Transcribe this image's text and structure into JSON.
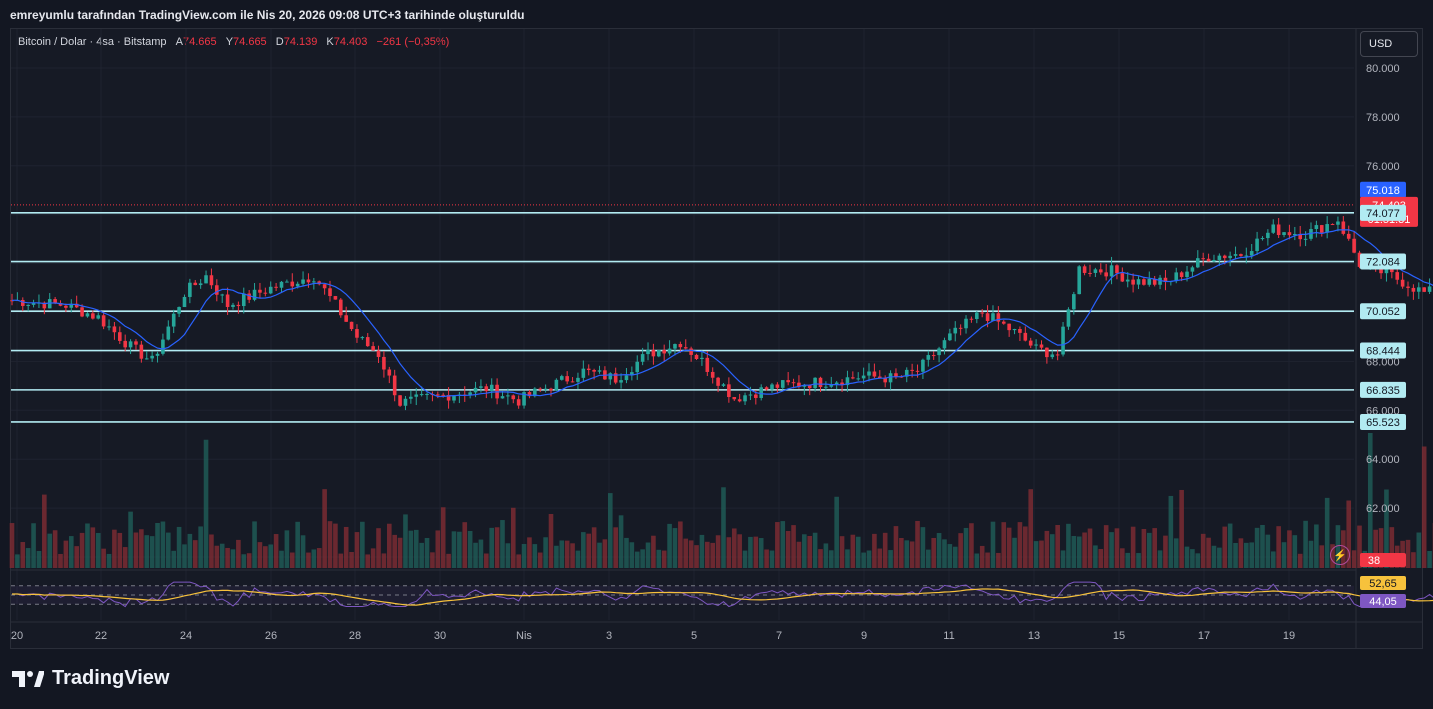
{
  "caption": "emreyumlu tarafından TradingView.com ile Nis 20, 2026 09:08 UTC+3 tarihinde oluşturuldu",
  "symbol_line": "Bitcoin / Dolar · 4sa · Bitstamp",
  "ohlc": {
    "open_label": "A",
    "open": "74.665",
    "high_label": "Y",
    "high": "74.665",
    "low_label": "D",
    "low": "74.139",
    "close_label": "K",
    "close": "74.403",
    "change": "−261 (−0,35%)"
  },
  "currency": "USD",
  "brand": "TradingView",
  "colors": {
    "up": "#26a69a",
    "down": "#f23645",
    "up_vol": "#1f5a56",
    "down_vol": "#7a2c33",
    "ma": "#2962ff",
    "level": "#b2ebf2",
    "rsi": "#7e57c2",
    "rsi_ma": "#f7c23c"
  },
  "chart_data": {
    "type": "candlestick",
    "y_axis_ticks": [
      "80.000",
      "78.000",
      "76.000",
      "74.000",
      "72.000",
      "70.000",
      "68.000",
      "66.000",
      "64.000",
      "62.000",
      "60.000"
    ],
    "ylim": [
      59000,
      81000
    ],
    "x_axis_ticks": [
      "20",
      "22",
      "24",
      "26",
      "28",
      "30",
      "Nis",
      "3",
      "5",
      "7",
      "9",
      "11",
      "13",
      "15",
      "17",
      "19"
    ],
    "horizontal_levels": [
      "74.077",
      "72.084",
      "70.052",
      "68.444",
      "66.835",
      "65.523"
    ],
    "price_tags": {
      "ma_value": "75.018",
      "last_price": "74.403",
      "countdown": "01:51:31",
      "volume_value": "38",
      "rsi_ma_value": "52,65",
      "rsi_value": "44,05"
    },
    "close_series_start_price": 70500,
    "close_series_anchors": [
      [
        0,
        70500
      ],
      [
        10,
        70300
      ],
      [
        16,
        69800
      ],
      [
        22,
        68600
      ],
      [
        26,
        68000
      ],
      [
        32,
        70800
      ],
      [
        36,
        71500
      ],
      [
        40,
        70300
      ],
      [
        48,
        71000
      ],
      [
        56,
        71500
      ],
      [
        60,
        70300
      ],
      [
        64,
        69000
      ],
      [
        68,
        68300
      ],
      [
        72,
        66300
      ],
      [
        80,
        66600
      ],
      [
        88,
        66900
      ],
      [
        94,
        66400
      ],
      [
        100,
        67000
      ],
      [
        106,
        67600
      ],
      [
        112,
        67300
      ],
      [
        118,
        68300
      ],
      [
        124,
        68800
      ],
      [
        128,
        68000
      ],
      [
        134,
        66500
      ],
      [
        142,
        67000
      ],
      [
        152,
        67200
      ],
      [
        158,
        67400
      ],
      [
        164,
        67300
      ],
      [
        168,
        67600
      ],
      [
        174,
        69000
      ],
      [
        180,
        70000
      ],
      [
        186,
        69200
      ],
      [
        190,
        68500
      ],
      [
        194,
        68300
      ],
      [
        198,
        71800
      ],
      [
        204,
        71700
      ],
      [
        208,
        71300
      ],
      [
        214,
        71200
      ],
      [
        222,
        72300
      ],
      [
        228,
        72400
      ],
      [
        234,
        73400
      ],
      [
        240,
        73200
      ],
      [
        246,
        73800
      ],
      [
        250,
        72000
      ],
      [
        256,
        71500
      ],
      [
        262,
        70800
      ],
      [
        268,
        71000
      ],
      [
        272,
        72500
      ],
      [
        276,
        74600
      ],
      [
        282,
        75400
      ],
      [
        288,
        74400
      ],
      [
        296,
        74800
      ],
      [
        302,
        75200
      ],
      [
        308,
        75000
      ],
      [
        312,
        75600
      ],
      [
        316,
        77500
      ],
      [
        320,
        77200
      ],
      [
        326,
        76200
      ],
      [
        332,
        75800
      ],
      [
        336,
        75500
      ],
      [
        340,
        74400
      ]
    ],
    "volume_spikes": [
      [
        36,
        0.95
      ],
      [
        252,
        1.0
      ],
      [
        262,
        0.65
      ],
      [
        316,
        0.75
      ],
      [
        80,
        0.45
      ],
      [
        100,
        0.4
      ]
    ],
    "rsi_lines": [
      "70",
      "50",
      "30"
    ]
  }
}
